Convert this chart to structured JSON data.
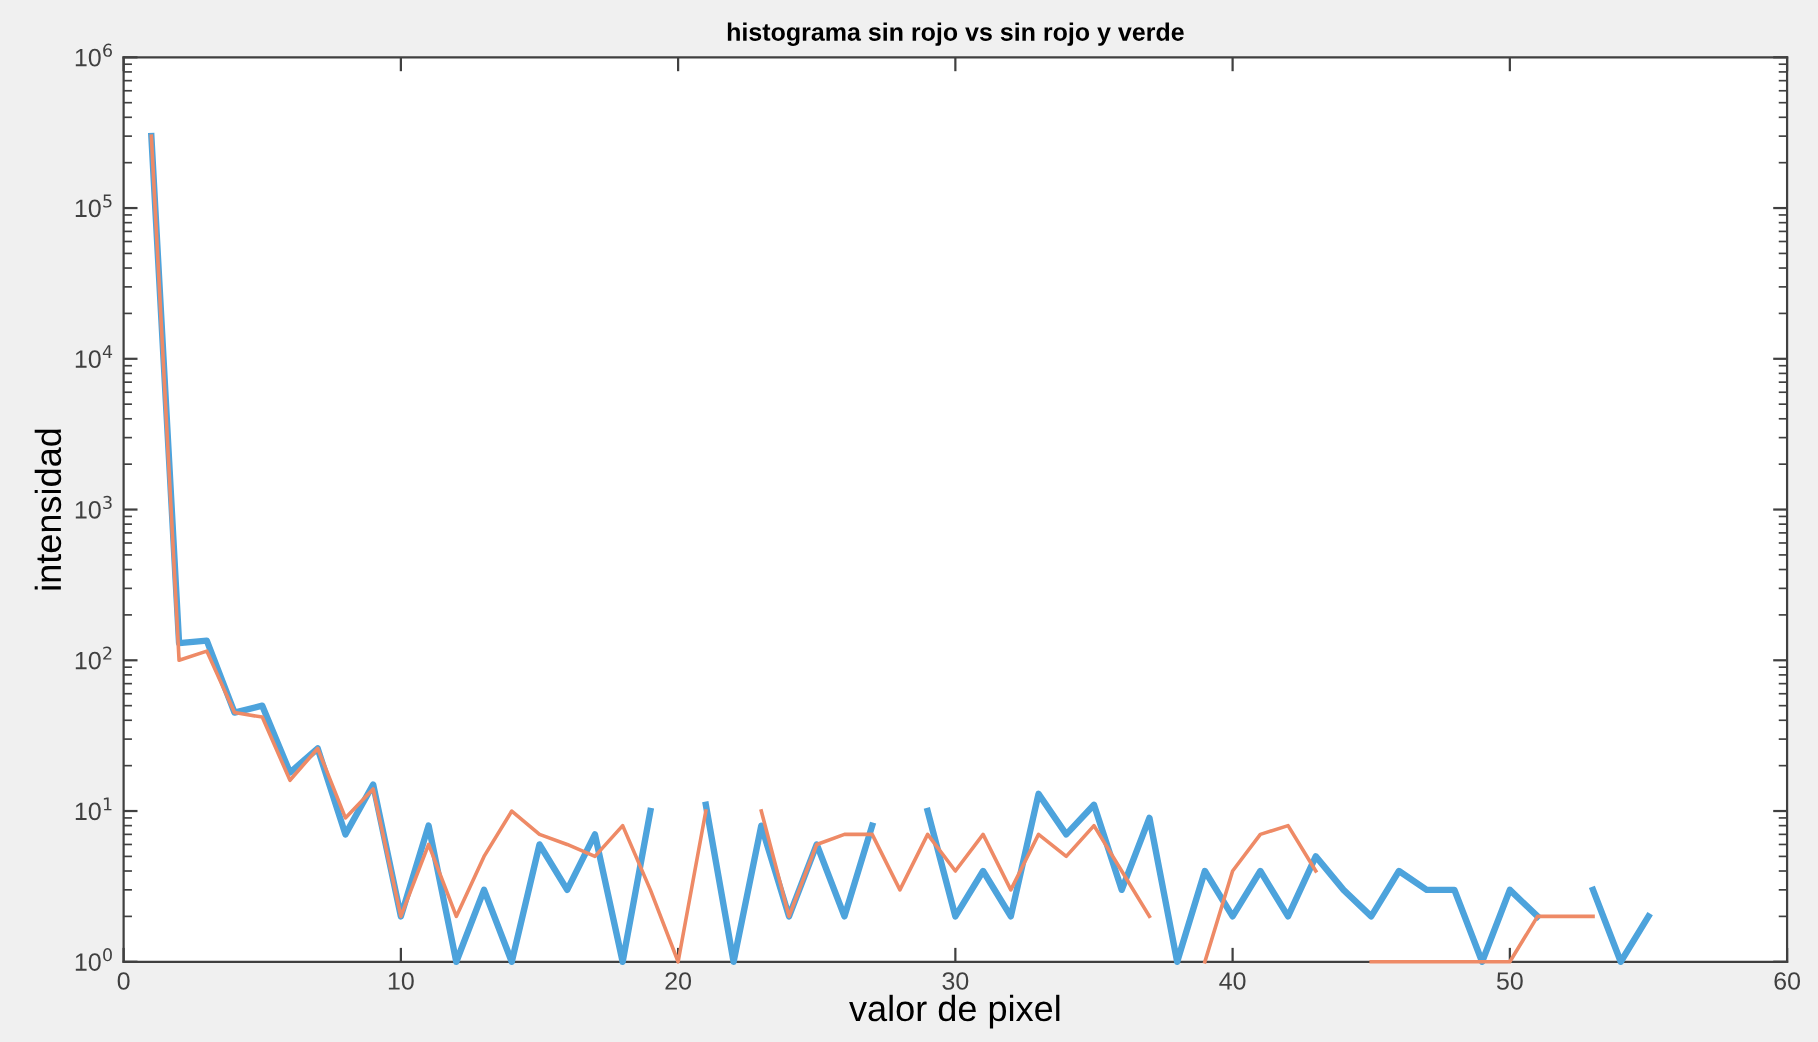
{
  "chart_data": {
    "type": "line",
    "title": "histograma sin rojo vs sin rojo y verde",
    "xlabel": "valor de pixel",
    "ylabel": "intensidad",
    "x": [
      1,
      2,
      3,
      4,
      5,
      6,
      7,
      8,
      9,
      10,
      11,
      12,
      13,
      14,
      15,
      16,
      17,
      18,
      19,
      20,
      21,
      22,
      23,
      24,
      25,
      26,
      27,
      28,
      29,
      30,
      31,
      32,
      33,
      34,
      35,
      36,
      37,
      38,
      39,
      40,
      41,
      42,
      43,
      44,
      45,
      46,
      47,
      48,
      49,
      50,
      51,
      52,
      53,
      54,
      55
    ],
    "series": [
      {
        "color": "#4da3dc",
        "values": [
          300000,
          130,
          135,
          45,
          50,
          18,
          26,
          7,
          15,
          2,
          8,
          1,
          3,
          1,
          6,
          3,
          7,
          1,
          10,
          null,
          11,
          1,
          8,
          2,
          6,
          2,
          8,
          null,
          10,
          2,
          4,
          2,
          13,
          7,
          11,
          3,
          9,
          1,
          4,
          2,
          4,
          2,
          5,
          3,
          2,
          4,
          3,
          3,
          1,
          3,
          2,
          null,
          3,
          1,
          2
        ]
      },
      {
        "color": "#ee8a66",
        "values": [
          300000,
          100,
          115,
          45,
          42,
          16,
          26,
          9,
          14,
          2,
          6,
          2,
          5,
          10,
          7,
          6,
          5,
          8,
          3,
          1,
          10,
          null,
          10,
          2,
          6,
          7,
          7,
          3,
          7,
          4,
          7,
          3,
          7,
          5,
          8,
          4,
          2,
          null,
          1,
          4,
          7,
          8,
          4,
          null,
          1,
          1,
          1,
          1,
          1,
          1,
          2,
          2,
          2,
          null,
          null
        ]
      }
    ],
    "log": "y",
    "xlim": [
      0,
      60
    ],
    "xticks": [
      0,
      10,
      20,
      30,
      40,
      50,
      60
    ],
    "ylim": [
      1,
      1000000
    ],
    "yticks": [
      {
        "value": 1,
        "label": "10$^{0}$"
      },
      {
        "value": 10,
        "label": "10$^{1}$"
      },
      {
        "value": 100,
        "label": "10$^{2}$"
      },
      {
        "value": 1000,
        "label": "10$^{3}$"
      },
      {
        "value": 10000,
        "label": "10$^{4}$"
      },
      {
        "value": 100000,
        "label": "10$^{5}$"
      },
      {
        "value": 1000000,
        "label": "10$^{6}$"
      }
    ],
    "grid": false,
    "legend": false,
    "marker": "none",
    "line_style": "solid"
  }
}
